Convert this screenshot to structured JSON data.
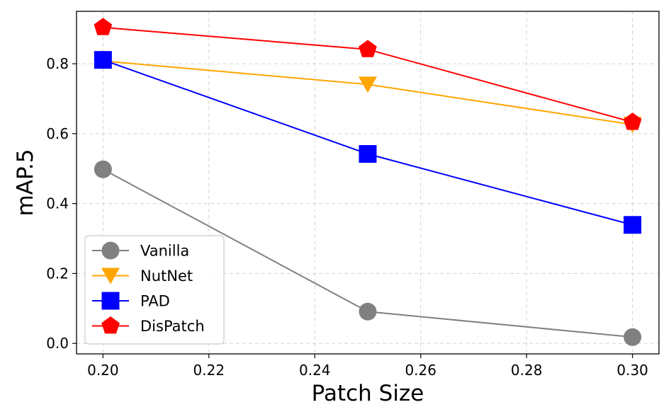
{
  "chart_data": {
    "type": "line",
    "title": "",
    "xlabel": "Patch Size",
    "ylabel": "mAP.5",
    "x": [
      0.2,
      0.25,
      0.3
    ],
    "xlim": [
      0.195,
      0.305
    ],
    "ylim": [
      -0.03,
      0.95
    ],
    "xticks": [
      0.2,
      0.22,
      0.24,
      0.26,
      0.28,
      0.3
    ],
    "xtick_labels": [
      "0.20",
      "0.22",
      "0.24",
      "0.26",
      "0.28",
      "0.30"
    ],
    "yticks": [
      0.0,
      0.2,
      0.4,
      0.6,
      0.8
    ],
    "ytick_labels": [
      "0.0",
      "0.2",
      "0.4",
      "0.6",
      "0.8"
    ],
    "grid": true,
    "legend_position": "lower-left",
    "series": [
      {
        "name": "Vanilla",
        "values": [
          0.498,
          0.091,
          0.018
        ],
        "color": "#808080",
        "marker": "circle"
      },
      {
        "name": "NutNet",
        "values": [
          0.808,
          0.741,
          0.626
        ],
        "color": "#FFA500",
        "marker": "triangle-down"
      },
      {
        "name": "PAD",
        "values": [
          0.811,
          0.542,
          0.339
        ],
        "color": "#0000FF",
        "marker": "square"
      },
      {
        "name": "DisPatch",
        "values": [
          0.904,
          0.841,
          0.633
        ],
        "color": "#FF0000",
        "marker": "pentagon"
      }
    ]
  }
}
